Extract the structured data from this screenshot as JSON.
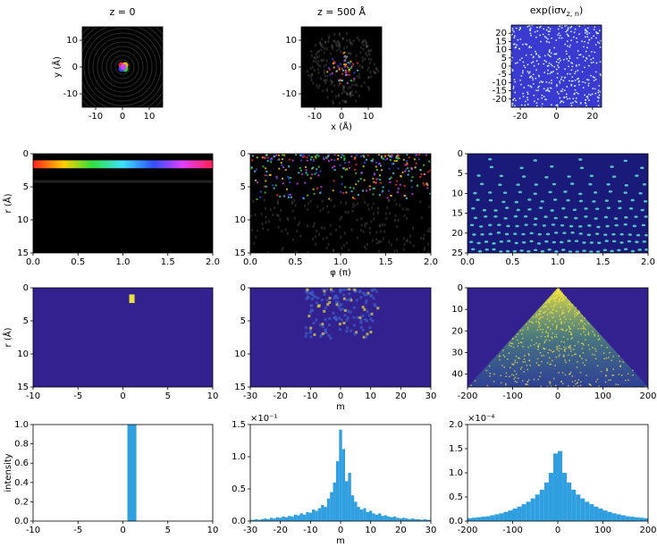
{
  "chart_data": [
    {
      "type": "image",
      "title": "z = 0",
      "ylabel": "y (Å)",
      "xlim": [
        -15,
        15
      ],
      "ylim": [
        -15,
        15
      ],
      "xticks": [
        -10,
        0,
        10
      ],
      "yticks": [
        -10,
        0,
        10
      ]
    },
    {
      "type": "image",
      "title": "z = 500 Å",
      "xlabel": "x (Å)",
      "xlim": [
        -15,
        15
      ],
      "ylim": [
        -15,
        15
      ],
      "xticks": [
        -10,
        0,
        10
      ],
      "yticks": [
        -10,
        0,
        10
      ]
    },
    {
      "type": "image",
      "title": [
        "exp(iσv",
        "z, n",
        ")"
      ],
      "xlim": [
        -25,
        25
      ],
      "ylim": [
        -25,
        25
      ],
      "xticks": [
        -20,
        0,
        20
      ],
      "yticks": [
        -20,
        -15,
        -10,
        -5,
        0,
        5,
        10,
        15,
        20
      ]
    },
    {
      "type": "image",
      "ylabel": "r (Å)",
      "xlim": [
        0,
        2
      ],
      "ylim": [
        15,
        0
      ],
      "xticks": [
        {
          "value": 0,
          "label": "0.0"
        },
        {
          "value": 0.5,
          "label": "0.5"
        },
        {
          "value": 1,
          "label": "1.0"
        },
        {
          "value": 1.5,
          "label": "1.5"
        },
        {
          "value": 2,
          "label": "2.0"
        }
      ],
      "yticks": [
        0,
        5,
        10,
        15
      ]
    },
    {
      "type": "image",
      "xlabel": "φ (π)",
      "xlim": [
        0,
        2
      ],
      "ylim": [
        15,
        0
      ],
      "xticks": [
        {
          "value": 0,
          "label": "0.0"
        },
        {
          "value": 0.5,
          "label": "0.5"
        },
        {
          "value": 1,
          "label": "1.0"
        },
        {
          "value": 1.5,
          "label": "1.5"
        },
        {
          "value": 2,
          "label": "2.0"
        }
      ],
      "yticks": [
        0,
        5,
        10,
        15
      ]
    },
    {
      "type": "image",
      "xlim": [
        0,
        2
      ],
      "ylim": [
        25,
        0
      ],
      "xticks": [
        {
          "value": 0,
          "label": "0.0"
        },
        {
          "value": 0.5,
          "label": "0.5"
        },
        {
          "value": 1,
          "label": "1.0"
        },
        {
          "value": 1.5,
          "label": "1.5"
        },
        {
          "value": 2,
          "label": "2.0"
        }
      ],
      "yticks": [
        0,
        5,
        10,
        15,
        20,
        25
      ]
    },
    {
      "type": "image",
      "ylabel": "r (Å)",
      "xlim": [
        -10,
        10
      ],
      "ylim": [
        15,
        0
      ],
      "xticks": [
        -10,
        -5,
        0,
        5,
        10
      ],
      "yticks": [
        0,
        5,
        10,
        15
      ]
    },
    {
      "type": "image",
      "xlabel": "m",
      "xlim": [
        -30,
        30
      ],
      "ylim": [
        15,
        0
      ],
      "xticks": [
        -30,
        -20,
        -10,
        0,
        10,
        20,
        30
      ],
      "yticks": [
        0,
        5,
        10,
        15
      ]
    },
    {
      "type": "image",
      "xlim": [
        -200,
        200
      ],
      "ylim": [
        46,
        0
      ],
      "xticks": [
        -200,
        -100,
        0,
        100,
        200
      ],
      "yticks": [
        0,
        10,
        20,
        30,
        40
      ]
    },
    {
      "type": "bar",
      "ylabel": "intensity",
      "color": "#2f9fe0",
      "xlim": [
        -10,
        10
      ],
      "ylim": [
        0,
        1
      ],
      "xticks": [
        -10,
        -5,
        0,
        5,
        10
      ],
      "yticks": [
        {
          "value": 0,
          "label": "0.0"
        },
        {
          "value": 0.2,
          "label": "0.2"
        },
        {
          "value": 0.4,
          "label": "0.4"
        },
        {
          "value": 0.6,
          "label": "0.6"
        },
        {
          "value": 0.8,
          "label": "0.8"
        },
        {
          "value": 1,
          "label": "1.0"
        }
      ],
      "x": [
        1
      ],
      "values": [
        1
      ]
    },
    {
      "type": "bar",
      "xlabel": "m",
      "offset_text": "×10⁻¹",
      "color": "#2f9fe0",
      "xlim": [
        -30,
        30
      ],
      "ylim": [
        0,
        1.5
      ],
      "xticks": [
        -30,
        -20,
        -10,
        0,
        10,
        20,
        30
      ],
      "yticks": [
        {
          "value": 0,
          "label": "0.0"
        },
        {
          "value": 0.5,
          "label": "0.5"
        },
        {
          "value": 1,
          "label": "1.0"
        },
        {
          "value": 1.5,
          "label": "1.5"
        }
      ],
      "x": [
        -30,
        -29,
        -28,
        -27,
        -26,
        -25,
        -24,
        -23,
        -22,
        -21,
        -20,
        -19,
        -18,
        -17,
        -16,
        -15,
        -14,
        -13,
        -12,
        -11,
        -10,
        -9,
        -8,
        -7,
        -6,
        -5,
        -4,
        -3,
        -2,
        -1,
        0,
        1,
        2,
        3,
        4,
        5,
        6,
        7,
        8,
        9,
        10,
        11,
        12,
        13,
        14,
        15,
        16,
        17,
        18,
        19,
        20,
        21,
        22,
        23,
        24,
        25,
        26,
        27,
        28,
        29,
        30
      ],
      "values": [
        0.02,
        0.02,
        0.03,
        0.02,
        0.03,
        0.04,
        0.03,
        0.05,
        0.04,
        0.06,
        0.05,
        0.07,
        0.06,
        0.08,
        0.07,
        0.1,
        0.09,
        0.12,
        0.1,
        0.14,
        0.13,
        0.18,
        0.16,
        0.2,
        0.25,
        0.22,
        0.35,
        0.45,
        0.6,
        0.93,
        1.42,
        1.12,
        0.62,
        0.75,
        0.4,
        0.3,
        0.22,
        0.18,
        0.2,
        0.14,
        0.16,
        0.12,
        0.1,
        0.12,
        0.08,
        0.09,
        0.07,
        0.06,
        0.07,
        0.05,
        0.04,
        0.05,
        0.04,
        0.03,
        0.04,
        0.03,
        0.03,
        0.02,
        0.03,
        0.02,
        0.02
      ]
    },
    {
      "type": "bar",
      "offset_text": "×10⁻⁴",
      "color": "#2f9fe0",
      "xlim": [
        -200,
        200
      ],
      "ylim": [
        0,
        2
      ],
      "xticks": [
        -200,
        -100,
        0,
        100,
        200
      ],
      "yticks": [
        {
          "value": 0,
          "label": "0.0"
        },
        {
          "value": 0.5,
          "label": "0.5"
        },
        {
          "value": 1,
          "label": "1.0"
        },
        {
          "value": 1.5,
          "label": "1.5"
        },
        {
          "value": 2,
          "label": "2.0"
        }
      ],
      "x": [
        -195,
        -185,
        -175,
        -165,
        -155,
        -145,
        -135,
        -125,
        -115,
        -105,
        -95,
        -85,
        -75,
        -65,
        -55,
        -45,
        -35,
        -25,
        -15,
        -5,
        5,
        15,
        25,
        35,
        45,
        55,
        65,
        75,
        85,
        95,
        105,
        115,
        125,
        135,
        145,
        155,
        165,
        175,
        185,
        195
      ],
      "values": [
        0.06,
        0.07,
        0.08,
        0.09,
        0.1,
        0.12,
        0.14,
        0.16,
        0.19,
        0.22,
        0.26,
        0.3,
        0.35,
        0.4,
        0.47,
        0.55,
        0.65,
        0.8,
        1.0,
        1.4,
        1.45,
        1.0,
        0.8,
        0.65,
        0.55,
        0.47,
        0.4,
        0.35,
        0.3,
        0.26,
        0.22,
        0.19,
        0.16,
        0.14,
        0.12,
        0.1,
        0.09,
        0.08,
        0.07,
        0.06
      ]
    }
  ]
}
